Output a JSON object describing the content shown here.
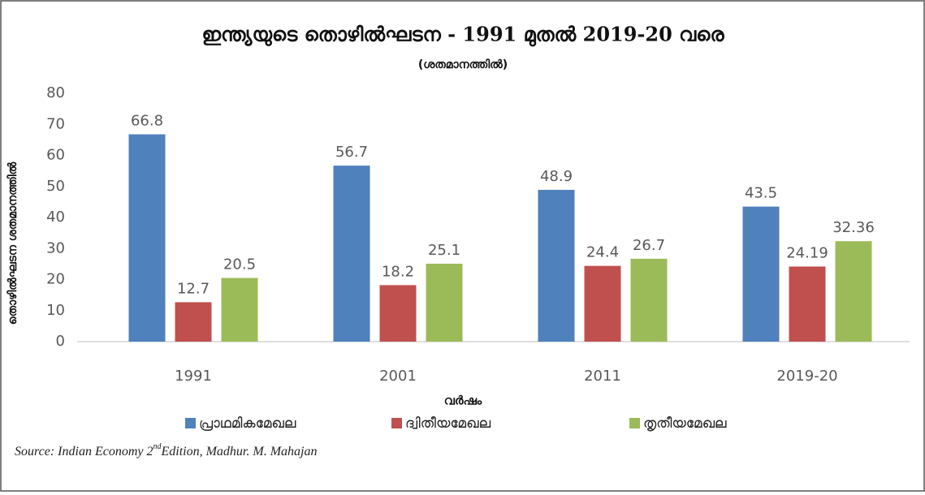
{
  "chart_data": {
    "type": "bar",
    "title": "ഇന്ത്യയുടെ തൊഴിൽഘടന - 1991 മുതൽ 2019-20 വരെ",
    "subtitle": "(ശതമാനത്തിൽ)",
    "y_label": "തൊഴിൽഘടന ശതമാനത്തിൽ",
    "x_label": "വർഷം",
    "categories": [
      "1991",
      "2001",
      "2011",
      "2019-20"
    ],
    "series": [
      {
        "name": "പ്രാഥമികമേഖല",
        "color": "#4f81bd",
        "values": [
          66.8,
          56.7,
          48.9,
          43.5
        ]
      },
      {
        "name": "ദ്വിതീയമേഖല",
        "color": "#c0504d",
        "values": [
          12.7,
          18.2,
          24.4,
          24.19
        ]
      },
      {
        "name": "തൃതീയമേഖല",
        "color": "#9bbb59",
        "values": [
          20.5,
          25.1,
          26.7,
          32.36
        ]
      }
    ],
    "ylim": [
      0,
      80
    ],
    "yticks": [
      0,
      10,
      20,
      30,
      40,
      50,
      60,
      70,
      80
    ],
    "grid": false,
    "source": {
      "prefix": "Source: Indian Economy 2",
      "sup": "nd",
      "rest": "Edition, Madhur. M. Mahajan"
    }
  }
}
